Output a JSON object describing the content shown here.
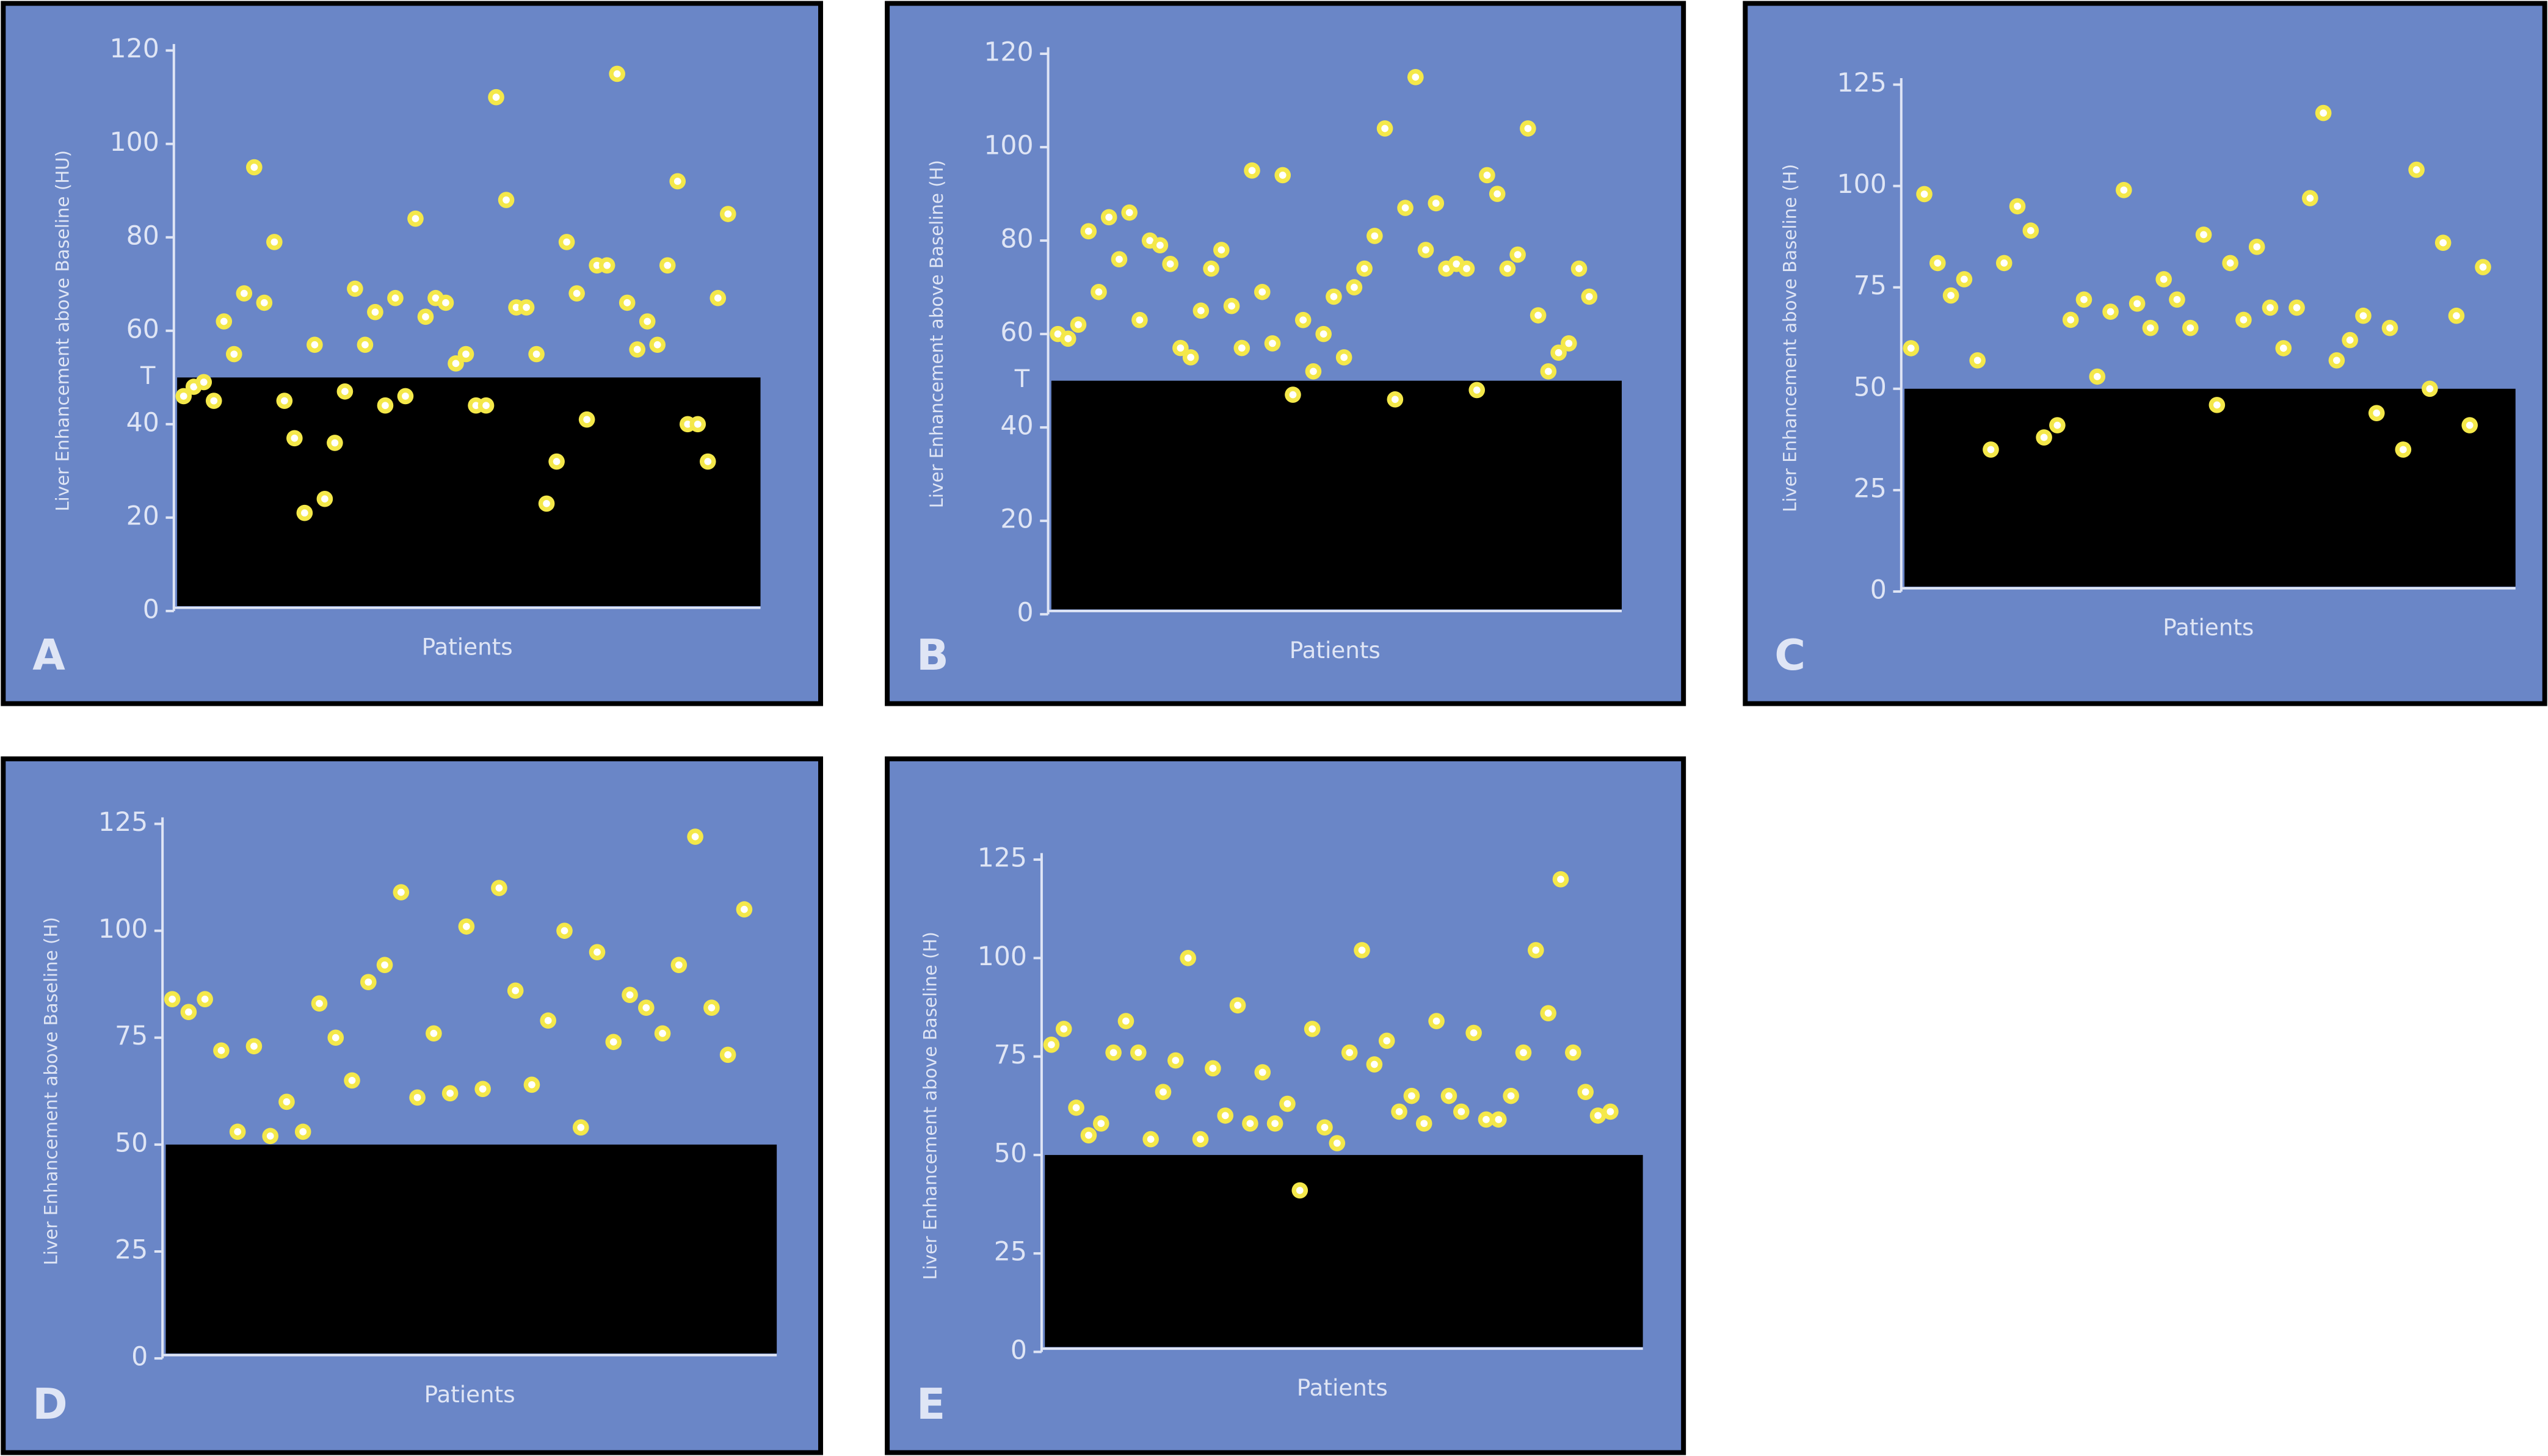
{
  "chart_data": [
    {
      "type": "scatter",
      "panel_label": "A",
      "y_label": "Liver Enhancement above Baseline (HU)",
      "x_label": "Patients",
      "threshold": 50,
      "threshold_label": "T",
      "color": "#f4e84a",
      "ylim": [
        0,
        120
      ],
      "yticks": [
        0,
        20,
        40,
        60,
        80,
        100,
        120
      ],
      "values": [
        46,
        48,
        49,
        45,
        62,
        55,
        68,
        95,
        66,
        79,
        45,
        37,
        21,
        57,
        24,
        36,
        47,
        69,
        57,
        64,
        44,
        67,
        46,
        84,
        63,
        67,
        66,
        53,
        55,
        44,
        44,
        110,
        88,
        65,
        65,
        55,
        23,
        32,
        79,
        68,
        41,
        74,
        74,
        115,
        66,
        56,
        62,
        57,
        74,
        92,
        40,
        40,
        32,
        67,
        85
      ]
    },
    {
      "type": "scatter",
      "panel_label": "B",
      "y_label": "Liver Enhancement above Baseline (H)",
      "x_label": "Patients",
      "threshold": 50,
      "threshold_label": "T",
      "color": "#f4e84a",
      "ylim": [
        0,
        120
      ],
      "yticks": [
        0,
        20,
        40,
        60,
        80,
        100,
        120
      ],
      "values": [
        60,
        59,
        62,
        82,
        69,
        85,
        76,
        86,
        63,
        80,
        79,
        75,
        57,
        55,
        65,
        74,
        78,
        66,
        57,
        95,
        69,
        58,
        94,
        47,
        63,
        52,
        60,
        68,
        55,
        70,
        74,
        81,
        104,
        46,
        87,
        115,
        78,
        88,
        74,
        75,
        74,
        48,
        94,
        90,
        74,
        77,
        104,
        64,
        52,
        56,
        58,
        74,
        68
      ]
    },
    {
      "type": "scatter",
      "panel_label": "C",
      "y_label": "Liver Enhancement above Baseline (H)",
      "x_label": "Patients",
      "threshold": 50,
      "color": "#f4e84a",
      "ylim": [
        0,
        125
      ],
      "yticks": [
        0,
        25,
        50,
        75,
        100,
        125
      ],
      "values": [
        60,
        98,
        81,
        73,
        77,
        57,
        35,
        81,
        95,
        89,
        38,
        41,
        67,
        72,
        53,
        69,
        99,
        71,
        65,
        77,
        72,
        65,
        88,
        46,
        81,
        67,
        85,
        70,
        60,
        70,
        97,
        118,
        57,
        62,
        68,
        44,
        65,
        35,
        104,
        50,
        86,
        68,
        41,
        80
      ]
    },
    {
      "type": "scatter",
      "panel_label": "D",
      "y_label": "Liver Enhancement above Baseline (H)",
      "x_label": "Patients",
      "threshold": 50,
      "color": "#f4e84a",
      "ylim": [
        0,
        125
      ],
      "yticks": [
        0,
        25,
        50,
        75,
        100,
        125
      ],
      "values": [
        84,
        81,
        84,
        72,
        53,
        73,
        52,
        60,
        53,
        83,
        75,
        65,
        88,
        92,
        109,
        61,
        76,
        62,
        101,
        63,
        110,
        86,
        64,
        79,
        100,
        54,
        95,
        74,
        85,
        82,
        76,
        92,
        122,
        82,
        71,
        105
      ]
    },
    {
      "type": "scatter",
      "panel_label": "E",
      "y_label": "Liver Enhancement above Baseline (H)",
      "x_label": "Patients",
      "threshold": 50,
      "color": "#f4e84a",
      "ylim": [
        0,
        125
      ],
      "yticks": [
        0,
        25,
        50,
        75,
        100,
        125
      ],
      "values": [
        78,
        82,
        62,
        55,
        58,
        76,
        84,
        76,
        54,
        66,
        74,
        100,
        54,
        72,
        60,
        88,
        58,
        71,
        58,
        63,
        41,
        82,
        57,
        53,
        76,
        102,
        73,
        79,
        61,
        65,
        58,
        84,
        65,
        61,
        81,
        59,
        59,
        65,
        76,
        102,
        86,
        120,
        76,
        66,
        60,
        61
      ]
    }
  ]
}
